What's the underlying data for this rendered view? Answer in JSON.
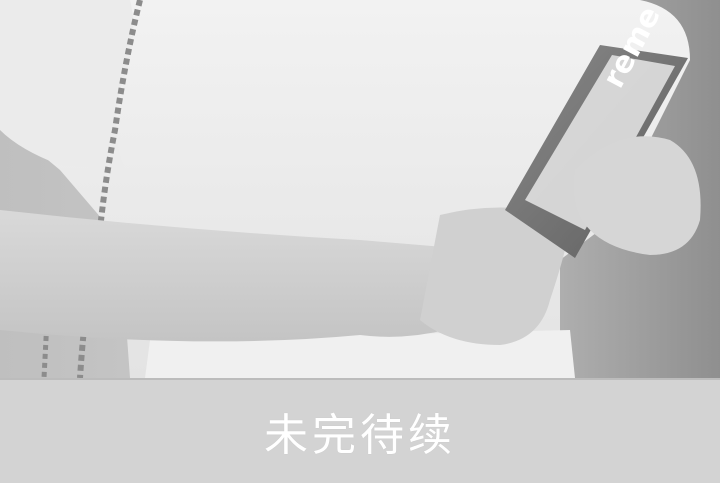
{
  "photo": {
    "subject": "",
    "phone_case_text": "reme"
  },
  "caption": {
    "text": "未完待续"
  },
  "colors": {
    "caption_bar": "#d3d3d3",
    "caption_text": "#ffffff"
  }
}
